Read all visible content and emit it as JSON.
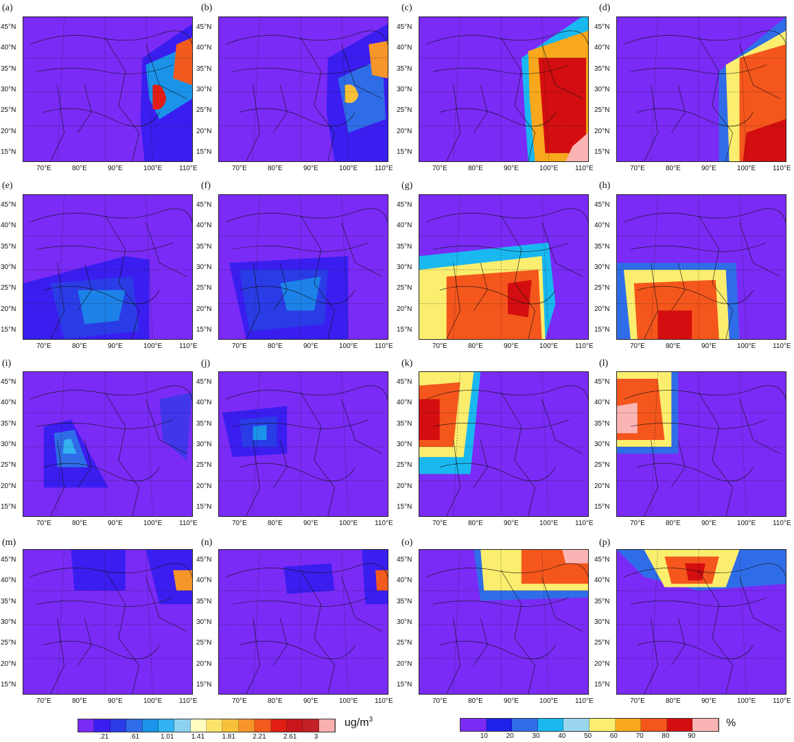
{
  "figure": {
    "panels": [
      "(a)",
      "(b)",
      "(c)",
      "(d)",
      "(e)",
      "(f)",
      "(g)",
      "(h)",
      "(i)",
      "(j)",
      "(k)",
      "(l)",
      "(m)",
      "(n)",
      "(o)",
      "(p)"
    ],
    "lat_labels": [
      "45°N",
      "40°N",
      "35°N",
      "30°N",
      "25°N",
      "20°N",
      "15°N"
    ],
    "lon_labels": [
      "70°E",
      "80°E",
      "90°E",
      "100°E",
      "110°E"
    ]
  },
  "colorbar_conc": {
    "ticks": [
      ".21",
      ".61",
      "1.01",
      "1.41",
      "1.81",
      "2.21",
      "2.61",
      "3"
    ],
    "unit": "ug/m",
    "unit_sup": "3",
    "colors": [
      "#7a2bf5",
      "#3a1ef0",
      "#2a3ce6",
      "#2f6de8",
      "#1a93e8",
      "#32b2f0",
      "#8cd2f0",
      "#fffdc0",
      "#fbe36a",
      "#f7c13a",
      "#f6952a",
      "#f25a1e",
      "#e01e16",
      "#c8161c",
      "#c42028",
      "#fbb0b0"
    ]
  },
  "colorbar_pct": {
    "ticks": [
      "10",
      "20",
      "30",
      "40",
      "50",
      "60",
      "70",
      "80",
      "90"
    ],
    "unit": "%",
    "colors": [
      "#7a2bf5",
      "#1d22e8",
      "#2f6de8",
      "#1ab8f0",
      "#9ad6ee",
      "#fbee6e",
      "#f7a81c",
      "#f4561c",
      "#d40e10",
      "#fbb4b4"
    ]
  }
}
